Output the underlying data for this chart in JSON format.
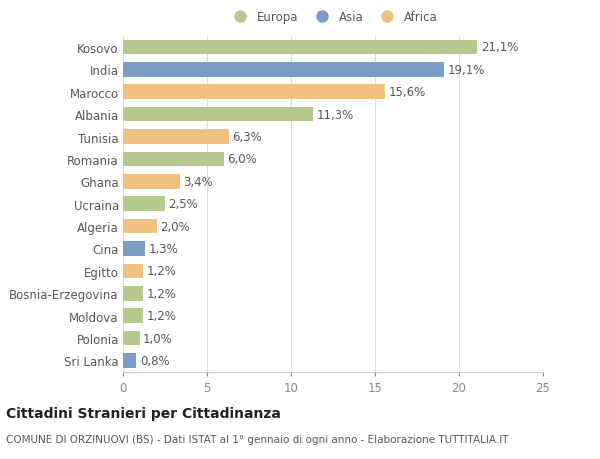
{
  "categories": [
    "Kosovo",
    "India",
    "Marocco",
    "Albania",
    "Tunisia",
    "Romania",
    "Ghana",
    "Ucraina",
    "Algeria",
    "Cina",
    "Egitto",
    "Bosnia-Erzegovina",
    "Moldova",
    "Polonia",
    "Sri Lanka"
  ],
  "values": [
    21.1,
    19.1,
    15.6,
    11.3,
    6.3,
    6.0,
    3.4,
    2.5,
    2.0,
    1.3,
    1.2,
    1.2,
    1.2,
    1.0,
    0.8
  ],
  "labels": [
    "21,1%",
    "19,1%",
    "15,6%",
    "11,3%",
    "6,3%",
    "6,0%",
    "3,4%",
    "2,5%",
    "2,0%",
    "1,3%",
    "1,2%",
    "1,2%",
    "1,2%",
    "1,0%",
    "0,8%"
  ],
  "colors": [
    "#b5c98e",
    "#7a9dc8",
    "#f0c080",
    "#b5c98e",
    "#f0c080",
    "#b5c98e",
    "#f0c080",
    "#b5c98e",
    "#f0c080",
    "#7a9dc8",
    "#f0c080",
    "#b5c98e",
    "#b5c98e",
    "#b5c98e",
    "#7a9dc8"
  ],
  "legend_labels": [
    "Europa",
    "Asia",
    "Africa"
  ],
  "legend_colors": [
    "#b5c98e",
    "#7a9dc8",
    "#f0c080"
  ],
  "xlim": [
    0,
    25
  ],
  "xticks": [
    0,
    5,
    10,
    15,
    20,
    25
  ],
  "title": "Cittadini Stranieri per Cittadinanza",
  "subtitle": "COMUNE DI ORZINUOVI (BS) - Dati ISTAT al 1° gennaio di ogni anno - Elaborazione TUTTITALIA.IT",
  "bg_color": "#ffffff",
  "bar_height": 0.65,
  "label_fontsize": 8.5,
  "tick_fontsize": 8.5,
  "title_fontsize": 10,
  "subtitle_fontsize": 7.5
}
